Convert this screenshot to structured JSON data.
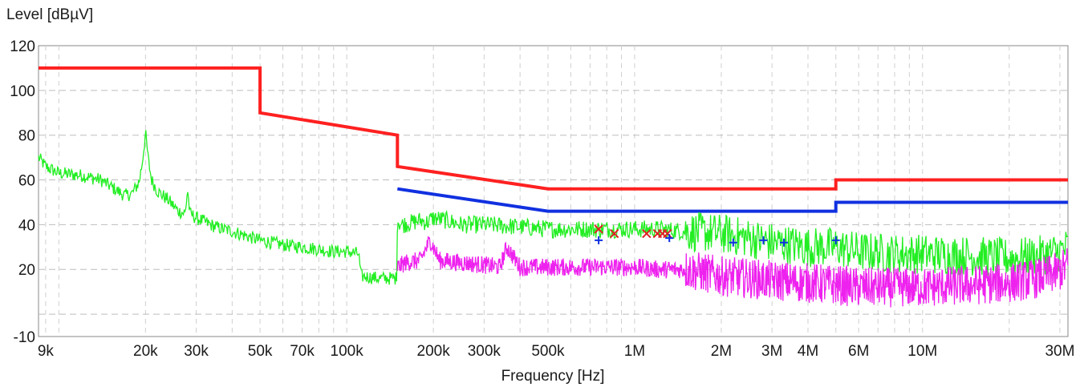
{
  "chart_data": {
    "type": "line",
    "title": "",
    "xlabel": "Frequency [Hz]",
    "ylabel": "Level [dBµV]",
    "x_scale": "log",
    "xlim": [
      8500,
      32000000
    ],
    "ylim": [
      -10,
      120
    ],
    "grid": true,
    "x_ticks": [
      {
        "value": 9000,
        "label": "9k"
      },
      {
        "value": 20000,
        "label": "20k"
      },
      {
        "value": 30000,
        "label": "30k"
      },
      {
        "value": 50000,
        "label": "50k"
      },
      {
        "value": 70000,
        "label": "70k"
      },
      {
        "value": 100000,
        "label": "100k"
      },
      {
        "value": 200000,
        "label": "200k"
      },
      {
        "value": 300000,
        "label": "300k"
      },
      {
        "value": 500000,
        "label": "500k"
      },
      {
        "value": 1000000,
        "label": "1M"
      },
      {
        "value": 2000000,
        "label": "2M"
      },
      {
        "value": 3000000,
        "label": "3M"
      },
      {
        "value": 4000000,
        "label": "4M"
      },
      {
        "value": 6000000,
        "label": "6M"
      },
      {
        "value": 10000000,
        "label": "10M"
      },
      {
        "value": 30000000,
        "label": "30M"
      }
    ],
    "y_ticks": [
      {
        "value": 120,
        "label": "120"
      },
      {
        "value": 100,
        "label": "100"
      },
      {
        "value": 80,
        "label": "80"
      },
      {
        "value": 60,
        "label": "60"
      },
      {
        "value": 40,
        "label": "40"
      },
      {
        "value": 20,
        "label": "20"
      },
      {
        "value": -10,
        "label": "-10"
      }
    ],
    "series": [
      {
        "color": "#ff2020",
        "style": "limit",
        "x": [
          8500,
          50000,
          50000,
          150000,
          150000,
          500000,
          5000000,
          5000000,
          32000000
        ],
        "y": [
          110,
          110,
          90,
          80,
          66,
          56,
          56,
          60,
          60
        ]
      },
      {
        "color": "#1030e0",
        "style": "limit",
        "x": [
          150000,
          500000,
          5000000,
          5000000,
          32000000
        ],
        "y": [
          56,
          46,
          46,
          50,
          50
        ]
      },
      {
        "color": "#22ee22",
        "style": "spectrum",
        "x": [
          8500,
          9000,
          10000,
          12000,
          14000,
          16000,
          17000,
          18000,
          19000,
          19500,
          20000,
          20500,
          21000,
          22000,
          24000,
          26000,
          27500,
          28000,
          28500,
          30000,
          35000,
          40000,
          50000,
          60000,
          70000,
          80000,
          90000,
          100000,
          110000,
          112000,
          130000,
          149000,
          150000,
          155000,
          170000,
          180000,
          190000,
          200000,
          220000,
          250000,
          300000,
          400000,
          500000,
          600000,
          700000,
          800000,
          1000000,
          1200000,
          1500000,
          2000000,
          2500000,
          3000000,
          4000000,
          5000000,
          6000000,
          8000000,
          10000000,
          15000000,
          20000000,
          25000000,
          30000000,
          32000000
        ],
        "y": [
          70,
          66,
          63,
          62,
          60,
          55,
          53,
          54,
          59,
          68,
          81,
          68,
          60,
          55,
          51,
          46,
          45,
          56,
          45,
          43,
          39,
          37,
          33,
          31,
          30,
          29,
          28,
          28,
          27,
          17,
          16,
          16,
          42,
          40,
          41,
          42,
          41,
          43,
          42,
          40,
          40,
          39,
          38,
          38,
          38,
          38,
          38,
          38,
          37,
          36,
          34,
          32,
          30,
          30,
          28,
          27,
          27,
          26,
          25,
          26,
          28,
          30
        ]
      },
      {
        "color": "#ee22ee",
        "style": "spectrum",
        "x": [
          150000,
          160000,
          180000,
          195000,
          210000,
          250000,
          300000,
          340000,
          360000,
          400000,
          500000,
          600000,
          700000,
          800000,
          1000000,
          1200000,
          1500000,
          2000000,
          2500000,
          3000000,
          4000000,
          5000000,
          6000000,
          8000000,
          10000000,
          15000000,
          20000000,
          25000000,
          30000000,
          32000000
        ],
        "y": [
          21,
          23,
          24,
          33,
          24,
          23,
          22,
          21,
          30,
          21,
          21,
          21,
          21,
          21,
          21,
          20,
          20,
          17,
          16,
          15,
          14,
          13,
          12,
          12,
          12,
          13,
          14,
          16,
          19,
          22
        ]
      }
    ],
    "markers": [
      {
        "symbol": "x",
        "color": "#dd2222",
        "x": [
          750000,
          850000,
          1100000,
          1200000,
          1250000,
          1300000
        ],
        "y": [
          38,
          36,
          36,
          36,
          36,
          36
        ]
      },
      {
        "symbol": "+",
        "color": "#1030e0",
        "x": [
          750000,
          1320000,
          2200000,
          2800000,
          3300000,
          5000000
        ],
        "y": [
          33,
          34,
          32,
          33,
          32,
          33
        ]
      }
    ]
  }
}
